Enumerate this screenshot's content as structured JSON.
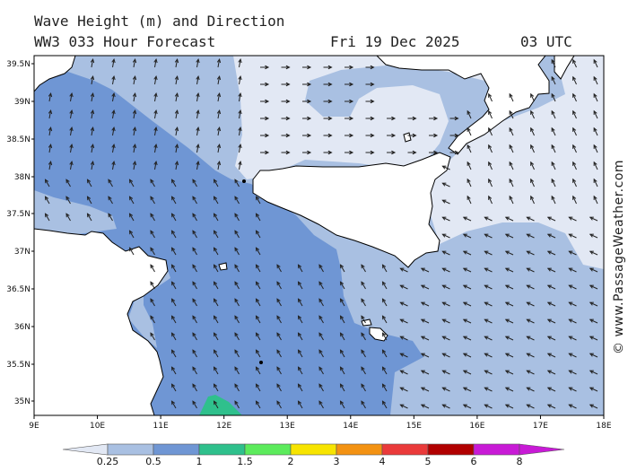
{
  "header": {
    "line1": "Wave Height (m) and Direction",
    "line2": "WW3 033 Hour Forecast",
    "date": "Fri 19 Dec 2025",
    "time": "03 UTC"
  },
  "watermark": "© www.PassageWeather.com",
  "map": {
    "lon_range": [
      9,
      18
    ],
    "lat_range": [
      34.8,
      39.6
    ],
    "lon_ticks": [
      "9E",
      "10E",
      "11E",
      "12E",
      "13E",
      "14E",
      "15E",
      "16E",
      "17E",
      "18E"
    ],
    "lat_ticks": [
      "39.5N",
      "39N",
      "38.5N",
      "38N",
      "37.5N",
      "37N",
      "36.5N",
      "36N",
      "35.5N",
      "35N"
    ],
    "land_color": "#ffffff",
    "coast_color": "#000000",
    "arrow_color": "#222222"
  },
  "legend": {
    "labels": [
      "0.25",
      "0.5",
      "1",
      "1.5",
      "2",
      "3",
      "4",
      "5",
      "6",
      "8"
    ],
    "colors": [
      "#e2e8f4",
      "#a9c0e2",
      "#6f96d4",
      "#2fc08c",
      "#5ceb5c",
      "#f7e400",
      "#f39212",
      "#ea3a3a",
      "#b10000",
      "#c81ad6"
    ]
  }
}
